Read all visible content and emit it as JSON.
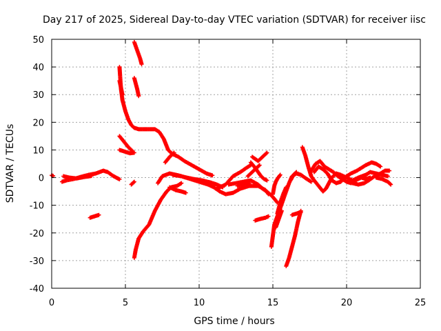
{
  "chart_data": {
    "type": "scatter",
    "title": "Day 217 of 2025, Sidereal Day-to-day VTEC variation (SDTVAR) for receiver iisc",
    "xlabel": "GPS time / hours",
    "ylabel": "SDTVAR / TECUs",
    "xlim": [
      0,
      25
    ],
    "ylim": [
      -40,
      50
    ],
    "xticks": [
      "0",
      "5",
      "10",
      "15",
      "20",
      "25"
    ],
    "yticks": [
      "-40",
      "-30",
      "-20",
      "-10",
      "0",
      "10",
      "20",
      "30",
      "40",
      "50"
    ],
    "grid": true,
    "marker": "+",
    "color": "#ff0000",
    "segments": [
      [
        [
          0.0,
          0.8
        ],
        [
          0.1,
          0.6
        ]
      ],
      [
        [
          0.7,
          -1.5
        ],
        [
          1.0,
          -1.0
        ],
        [
          1.5,
          -0.5
        ],
        [
          2.0,
          0.3
        ],
        [
          2.5,
          1.0
        ],
        [
          3.0,
          1.5
        ],
        [
          3.5,
          2.5
        ],
        [
          3.8,
          2.0
        ],
        [
          4.2,
          0.5
        ],
        [
          4.6,
          -0.6
        ]
      ],
      [
        [
          0.8,
          0.5
        ],
        [
          1.2,
          0.0
        ],
        [
          1.7,
          -0.3
        ],
        [
          2.2,
          0.2
        ],
        [
          2.7,
          0.6
        ]
      ],
      [
        [
          2.6,
          -14.5
        ],
        [
          2.9,
          -14.0
        ],
        [
          3.2,
          -13.5
        ]
      ],
      [
        [
          4.6,
          40.0
        ],
        [
          4.7,
          32.0
        ],
        [
          4.8,
          28.0
        ],
        [
          5.0,
          24.0
        ],
        [
          5.2,
          21.0
        ],
        [
          5.4,
          19.0
        ],
        [
          5.6,
          18.0
        ],
        [
          5.9,
          17.5
        ],
        [
          6.5,
          17.5
        ],
        [
          7.0,
          17.5
        ],
        [
          7.3,
          16.5
        ],
        [
          7.6,
          14.0
        ],
        [
          7.9,
          10.0
        ],
        [
          8.2,
          8.5
        ],
        [
          8.6,
          7.5
        ],
        [
          9.0,
          6.0
        ],
        [
          9.5,
          4.5
        ],
        [
          10.0,
          3.0
        ],
        [
          10.5,
          1.5
        ],
        [
          10.9,
          0.8
        ]
      ],
      [
        [
          4.6,
          35.0
        ],
        [
          4.8,
          30.0
        ]
      ],
      [
        [
          4.6,
          15.0
        ],
        [
          4.9,
          13.0
        ],
        [
          5.2,
          11.0
        ],
        [
          5.5,
          9.5
        ]
      ],
      [
        [
          4.6,
          10.0
        ],
        [
          4.9,
          9.5
        ],
        [
          5.3,
          8.8
        ],
        [
          5.6,
          9.0
        ]
      ],
      [
        [
          5.6,
          49.0
        ],
        [
          5.8,
          46.0
        ],
        [
          6.0,
          43.0
        ],
        [
          6.1,
          41.0
        ]
      ],
      [
        [
          5.6,
          36.0
        ],
        [
          5.8,
          32.0
        ],
        [
          5.9,
          29.5
        ]
      ],
      [
        [
          5.4,
          -2.5
        ],
        [
          5.6,
          -1.5
        ]
      ],
      [
        [
          5.6,
          -29.0
        ],
        [
          5.7,
          -26.0
        ],
        [
          5.9,
          -22.0
        ],
        [
          6.2,
          -19.5
        ],
        [
          6.6,
          -17.0
        ],
        [
          7.0,
          -12.0
        ],
        [
          7.4,
          -8.0
        ],
        [
          7.8,
          -5.0
        ],
        [
          8.1,
          -3.5
        ],
        [
          8.5,
          -3.0
        ],
        [
          8.8,
          -2.0
        ]
      ],
      [
        [
          7.2,
          -2.0
        ],
        [
          7.5,
          0.5
        ],
        [
          8.0,
          1.5
        ],
        [
          8.6,
          0.8
        ],
        [
          9.0,
          0.2
        ],
        [
          9.6,
          -0.5
        ],
        [
          10.2,
          -1.0
        ],
        [
          10.8,
          -1.8
        ],
        [
          11.2,
          -2.5
        ],
        [
          11.6,
          -3.5
        ]
      ],
      [
        [
          7.7,
          5.5
        ],
        [
          8.0,
          7.5
        ],
        [
          8.3,
          9.0
        ]
      ],
      [
        [
          8.0,
          -3.5
        ],
        [
          8.4,
          -4.5
        ],
        [
          8.8,
          -5.0
        ],
        [
          9.1,
          -5.5
        ]
      ],
      [
        [
          8.2,
          1.0
        ],
        [
          8.8,
          0.5
        ],
        [
          9.4,
          -0.5
        ],
        [
          10.0,
          -1.5
        ],
        [
          10.6,
          -2.5
        ],
        [
          11.0,
          -3.5
        ],
        [
          11.4,
          -5.0
        ],
        [
          11.8,
          -6.0
        ],
        [
          12.3,
          -5.5
        ],
        [
          12.8,
          -4.0
        ],
        [
          13.4,
          -3.0
        ],
        [
          14.0,
          -3.0
        ],
        [
          14.5,
          -4.5
        ],
        [
          14.7,
          -6.0
        ]
      ],
      [
        [
          11.2,
          -4.0
        ],
        [
          11.8,
          -2.5
        ],
        [
          12.3,
          0.5
        ],
        [
          12.8,
          2.0
        ],
        [
          13.2,
          3.5
        ],
        [
          13.5,
          4.5
        ]
      ],
      [
        [
          12.0,
          -2.5
        ],
        [
          12.5,
          -2.0
        ],
        [
          13.0,
          -1.5
        ],
        [
          13.5,
          -1.0
        ],
        [
          14.0,
          -2.5
        ],
        [
          14.3,
          -4.0
        ],
        [
          14.7,
          -5.5
        ],
        [
          15.0,
          -7.0
        ],
        [
          15.3,
          -9.0
        ]
      ],
      [
        [
          12.6,
          -3.0
        ],
        [
          13.0,
          -2.5
        ],
        [
          13.4,
          -2.0
        ]
      ],
      [
        [
          13.3,
          0.5
        ],
        [
          13.5,
          1.5
        ],
        [
          13.8,
          3.0
        ],
        [
          14.1,
          4.5
        ]
      ],
      [
        [
          13.5,
          5.5
        ],
        [
          13.8,
          3.5
        ],
        [
          14.0,
          2.0
        ],
        [
          14.2,
          0.5
        ],
        [
          14.4,
          -0.5
        ],
        [
          14.6,
          -1.0
        ]
      ],
      [
        [
          13.6,
          7.5
        ],
        [
          14.0,
          6.0
        ],
        [
          14.4,
          8.0
        ],
        [
          14.6,
          9.0
        ]
      ],
      [
        [
          13.8,
          -15.5
        ],
        [
          14.1,
          -15.0
        ],
        [
          14.5,
          -14.5
        ],
        [
          14.7,
          -14.0
        ]
      ],
      [
        [
          14.9,
          -25.0
        ],
        [
          15.0,
          -21.0
        ],
        [
          15.1,
          -17.0
        ],
        [
          15.3,
          -14.0
        ],
        [
          15.5,
          -11.0
        ],
        [
          15.7,
          -8.0
        ],
        [
          15.9,
          -5.0
        ],
        [
          16.1,
          -2.0
        ],
        [
          16.3,
          0.5
        ],
        [
          16.6,
          1.5
        ],
        [
          16.9,
          1.0
        ],
        [
          17.3,
          -0.5
        ],
        [
          17.6,
          -1.5
        ]
      ],
      [
        [
          15.0,
          -6.0
        ],
        [
          15.1,
          -3.0
        ],
        [
          15.2,
          -1.5
        ],
        [
          15.3,
          -0.5
        ],
        [
          15.5,
          1.0
        ]
      ],
      [
        [
          15.3,
          -13.0
        ],
        [
          15.5,
          -9.0
        ],
        [
          15.7,
          -6.0
        ],
        [
          15.9,
          -3.5
        ]
      ],
      [
        [
          15.2,
          -18.0
        ],
        [
          15.4,
          -15.0
        ],
        [
          15.6,
          -12.0
        ]
      ],
      [
        [
          15.9,
          -32.0
        ],
        [
          16.1,
          -29.0
        ],
        [
          16.3,
          -25.0
        ],
        [
          16.5,
          -21.0
        ],
        [
          16.7,
          -16.0
        ],
        [
          16.9,
          -12.0
        ]
      ],
      [
        [
          16.3,
          -13.5
        ],
        [
          16.6,
          -13.0
        ],
        [
          16.9,
          -12.5
        ]
      ],
      [
        [
          16.2,
          -1.0
        ],
        [
          16.4,
          1.0
        ],
        [
          16.6,
          2.0
        ]
      ],
      [
        [
          17.0,
          11.0
        ],
        [
          17.2,
          8.0
        ],
        [
          17.4,
          4.0
        ],
        [
          17.6,
          0.5
        ],
        [
          17.8,
          -1.0
        ],
        [
          18.1,
          -3.0
        ],
        [
          18.4,
          -5.0
        ],
        [
          18.6,
          -4.0
        ],
        [
          18.8,
          -2.0
        ],
        [
          19.0,
          0.0
        ],
        [
          19.3,
          1.5
        ],
        [
          19.6,
          1.0
        ],
        [
          20.0,
          0.0
        ],
        [
          20.4,
          -1.0
        ],
        [
          20.8,
          0.0
        ],
        [
          21.3,
          1.0
        ],
        [
          21.6,
          2.0
        ],
        [
          22.0,
          1.5
        ],
        [
          22.4,
          1.0
        ],
        [
          22.8,
          0.5
        ]
      ],
      [
        [
          17.8,
          2.0
        ],
        [
          18.1,
          4.0
        ],
        [
          18.4,
          3.0
        ],
        [
          18.7,
          1.5
        ],
        [
          19.0,
          -1.0
        ],
        [
          19.3,
          -2.0
        ],
        [
          19.6,
          -1.5
        ],
        [
          20.0,
          0.5
        ],
        [
          20.3,
          1.5
        ],
        [
          20.7,
          2.5
        ],
        [
          21.0,
          3.5
        ],
        [
          21.3,
          4.5
        ],
        [
          21.7,
          5.5
        ],
        [
          22.0,
          5.0
        ],
        [
          22.3,
          4.0
        ]
      ],
      [
        [
          17.6,
          2.5
        ],
        [
          17.9,
          5.0
        ],
        [
          18.2,
          6.0
        ],
        [
          18.5,
          4.0
        ],
        [
          18.8,
          3.0
        ],
        [
          19.1,
          2.0
        ],
        [
          19.4,
          0.5
        ],
        [
          19.7,
          -0.5
        ],
        [
          20.0,
          -1.5
        ],
        [
          20.3,
          -2.0
        ],
        [
          20.6,
          -1.0
        ],
        [
          21.0,
          0.0
        ],
        [
          21.3,
          -0.5
        ],
        [
          21.6,
          0.0
        ]
      ],
      [
        [
          20.4,
          -2.0
        ],
        [
          20.8,
          -2.5
        ],
        [
          21.2,
          -2.0
        ],
        [
          21.5,
          -1.0
        ],
        [
          21.9,
          0.5
        ],
        [
          22.3,
          1.5
        ],
        [
          22.6,
          2.5
        ],
        [
          22.9,
          2.5
        ]
      ],
      [
        [
          22.0,
          0.0
        ],
        [
          22.4,
          -0.5
        ],
        [
          22.8,
          -1.5
        ],
        [
          23.0,
          -2.5
        ]
      ]
    ]
  }
}
